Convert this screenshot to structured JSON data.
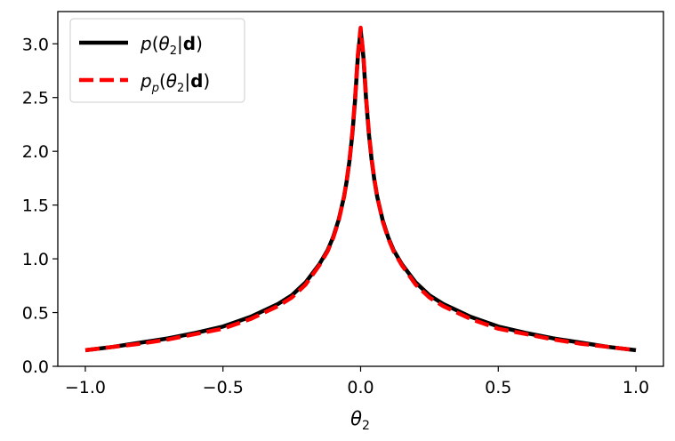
{
  "chart_data": {
    "type": "line",
    "xlabel": "θ₂",
    "ylabel": "",
    "xlim": [
      -1.1,
      1.1
    ],
    "ylim": [
      0.0,
      3.3
    ],
    "xticks": [
      -1.0,
      -0.5,
      0.0,
      0.5,
      1.0
    ],
    "xtick_labels": [
      "−1.0",
      "−0.5",
      "0.0",
      "0.5",
      "1.0"
    ],
    "yticks": [
      0.0,
      0.5,
      1.0,
      1.5,
      2.0,
      2.5,
      3.0
    ],
    "ytick_labels": [
      "0.0",
      "0.5",
      "1.0",
      "1.5",
      "2.0",
      "2.5",
      "3.0"
    ],
    "grid": false,
    "legend_position": "top-left",
    "series": [
      {
        "name": "p(θ₂|d)",
        "color": "#000000",
        "style": "solid",
        "x": [
          -1.0,
          -0.9,
          -0.8,
          -0.7,
          -0.6,
          -0.5,
          -0.4,
          -0.3,
          -0.25,
          -0.2,
          -0.15,
          -0.12,
          -0.1,
          -0.08,
          -0.06,
          -0.05,
          -0.04,
          -0.03,
          -0.02,
          -0.01,
          0.0,
          0.01,
          0.02,
          0.03,
          0.04,
          0.05,
          0.06,
          0.08,
          0.1,
          0.12,
          0.15,
          0.2,
          0.25,
          0.3,
          0.4,
          0.5,
          0.6,
          0.7,
          0.8,
          0.9,
          1.0
        ],
        "y": [
          0.15,
          0.18,
          0.22,
          0.26,
          0.31,
          0.37,
          0.46,
          0.58,
          0.66,
          0.78,
          0.95,
          1.08,
          1.2,
          1.36,
          1.58,
          1.73,
          1.92,
          2.16,
          2.48,
          2.88,
          3.13,
          2.88,
          2.48,
          2.16,
          1.92,
          1.73,
          1.58,
          1.36,
          1.2,
          1.08,
          0.95,
          0.78,
          0.66,
          0.58,
          0.46,
          0.37,
          0.31,
          0.26,
          0.22,
          0.18,
          0.15
        ]
      },
      {
        "name": "p_p(θ₂|d)",
        "color": "#ff0000",
        "style": "dashed",
        "x": [
          -1.0,
          -0.9,
          -0.8,
          -0.7,
          -0.6,
          -0.5,
          -0.4,
          -0.3,
          -0.25,
          -0.2,
          -0.15,
          -0.12,
          -0.1,
          -0.08,
          -0.06,
          -0.05,
          -0.04,
          -0.03,
          -0.02,
          -0.01,
          0.0,
          0.01,
          0.02,
          0.03,
          0.04,
          0.05,
          0.06,
          0.08,
          0.1,
          0.12,
          0.15,
          0.2,
          0.25,
          0.3,
          0.4,
          0.5,
          0.6,
          0.7,
          0.8,
          0.9,
          1.0
        ],
        "y": [
          0.15,
          0.18,
          0.21,
          0.25,
          0.3,
          0.35,
          0.44,
          0.56,
          0.64,
          0.76,
          0.94,
          1.07,
          1.19,
          1.35,
          1.58,
          1.74,
          1.93,
          2.18,
          2.5,
          2.9,
          3.15,
          2.9,
          2.5,
          2.18,
          1.93,
          1.74,
          1.58,
          1.35,
          1.19,
          1.07,
          0.94,
          0.76,
          0.64,
          0.56,
          0.44,
          0.35,
          0.3,
          0.25,
          0.21,
          0.18,
          0.15
        ]
      }
    ]
  }
}
